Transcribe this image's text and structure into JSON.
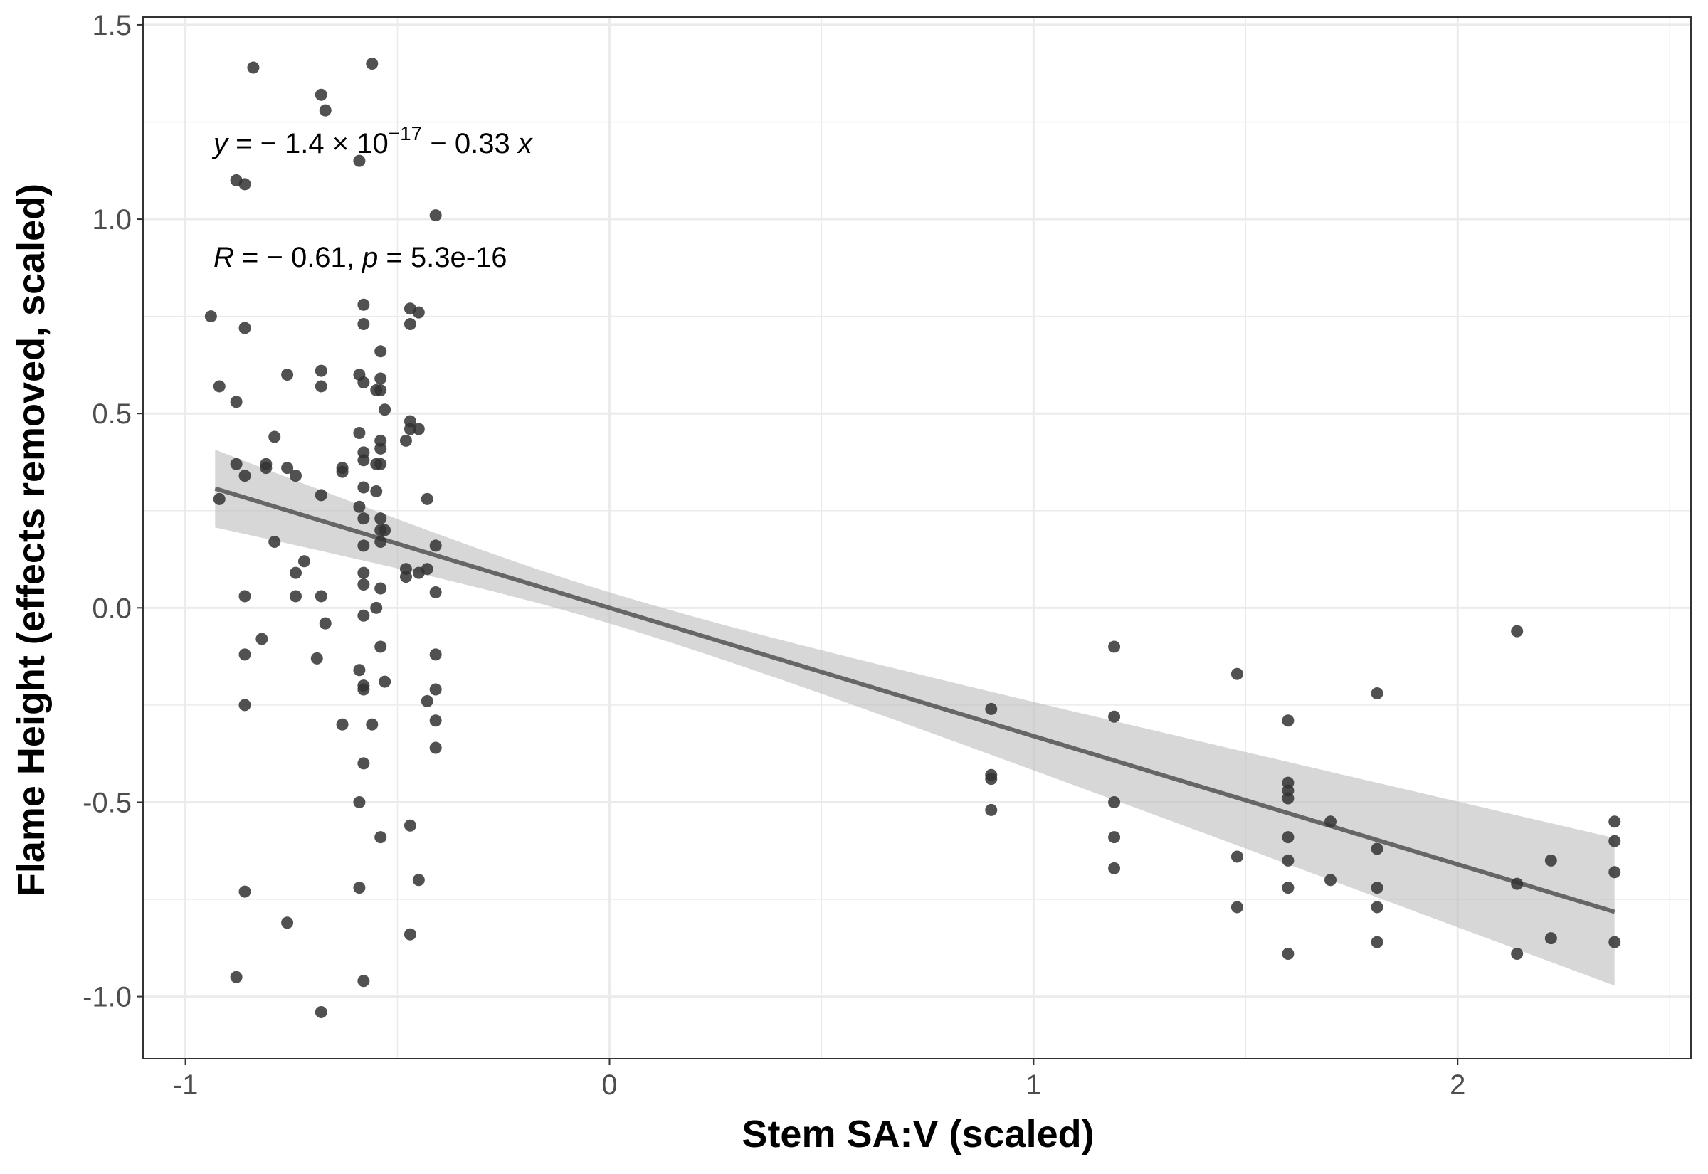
{
  "chart_data": {
    "type": "scatter",
    "xlabel": "Stem SA:V (scaled)",
    "ylabel": "Flame Height (effects removed, scaled)",
    "xlim": [
      -1.1,
      2.55
    ],
    "ylim": [
      -1.16,
      1.52
    ],
    "x_ticks": [
      -1,
      0,
      1,
      2
    ],
    "x_tick_labels": [
      "-1",
      "0",
      "1",
      "2"
    ],
    "y_ticks": [
      -1.0,
      -0.5,
      0.0,
      0.5,
      1.0,
      1.5
    ],
    "y_tick_labels": [
      "-1.0",
      "-0.5",
      "0.0",
      "0.5",
      "1.0",
      "1.5"
    ],
    "grid": true,
    "colors": {
      "points": "#333333",
      "line": "#666666",
      "band": "#bfbfbf",
      "grid": "#ebebeb",
      "panel_border": "#333333"
    },
    "annotations": {
      "equation": {
        "y": "y",
        "eq": " = − 1.4 × 10",
        "exp": "−17",
        "rest": " − 0.33 ",
        "x": "x"
      },
      "stats": {
        "R": "R",
        "r_text": " = − 0.61, ",
        "p": "p",
        "p_text": " = 5.3e-16"
      }
    },
    "fit": {
      "intercept": -1.4e-17,
      "slope": -0.33,
      "x_range": [
        -0.93,
        2.37
      ],
      "ci_lower_at_ends": [
        0.21,
        -0.98
      ],
      "ci_upper_at_ends": [
        0.41,
        -0.6
      ],
      "ci_half_width_at_mean": 0.04,
      "x_mean": 0
    },
    "points": [
      [
        -0.94,
        0.75
      ],
      [
        -0.92,
        0.57
      ],
      [
        -0.92,
        0.28
      ],
      [
        -0.88,
        0.53
      ],
      [
        -0.88,
        0.37
      ],
      [
        -0.88,
        1.1
      ],
      [
        -0.88,
        -0.95
      ],
      [
        -0.86,
        1.09
      ],
      [
        -0.86,
        0.72
      ],
      [
        -0.86,
        0.34
      ],
      [
        -0.86,
        0.03
      ],
      [
        -0.86,
        -0.12
      ],
      [
        -0.86,
        -0.25
      ],
      [
        -0.86,
        -0.73
      ],
      [
        -0.84,
        1.39
      ],
      [
        -0.82,
        -0.08
      ],
      [
        -0.81,
        0.37
      ],
      [
        -0.81,
        0.36
      ],
      [
        -0.79,
        0.44
      ],
      [
        -0.79,
        0.17
      ],
      [
        -0.76,
        0.6
      ],
      [
        -0.76,
        0.36
      ],
      [
        -0.76,
        -0.81
      ],
      [
        -0.74,
        0.34
      ],
      [
        -0.74,
        0.09
      ],
      [
        -0.74,
        0.03
      ],
      [
        -0.72,
        0.12
      ],
      [
        -0.69,
        -0.13
      ],
      [
        -0.68,
        1.32
      ],
      [
        -0.68,
        0.61
      ],
      [
        -0.68,
        0.57
      ],
      [
        -0.68,
        0.29
      ],
      [
        -0.68,
        0.03
      ],
      [
        -0.68,
        -1.04
      ],
      [
        -0.67,
        1.28
      ],
      [
        -0.67,
        -0.04
      ],
      [
        -0.63,
        0.36
      ],
      [
        -0.63,
        0.35
      ],
      [
        -0.63,
        -0.3
      ],
      [
        -0.59,
        1.15
      ],
      [
        -0.59,
        0.6
      ],
      [
        -0.59,
        0.45
      ],
      [
        -0.59,
        0.26
      ],
      [
        -0.59,
        -0.16
      ],
      [
        -0.59,
        -0.5
      ],
      [
        -0.59,
        -0.72
      ],
      [
        -0.58,
        0.78
      ],
      [
        -0.58,
        0.73
      ],
      [
        -0.58,
        0.58
      ],
      [
        -0.58,
        0.4
      ],
      [
        -0.58,
        0.38
      ],
      [
        -0.58,
        0.31
      ],
      [
        -0.58,
        0.23
      ],
      [
        -0.58,
        0.16
      ],
      [
        -0.58,
        0.09
      ],
      [
        -0.58,
        0.06
      ],
      [
        -0.58,
        -0.02
      ],
      [
        -0.58,
        -0.2
      ],
      [
        -0.58,
        -0.21
      ],
      [
        -0.58,
        -0.4
      ],
      [
        -0.58,
        -0.96
      ],
      [
        -0.56,
        1.4
      ],
      [
        -0.56,
        -0.3
      ],
      [
        -0.55,
        0.56
      ],
      [
        -0.55,
        0.37
      ],
      [
        -0.55,
        0.3
      ],
      [
        -0.55,
        0.0
      ],
      [
        -0.54,
        0.66
      ],
      [
        -0.54,
        0.59
      ],
      [
        -0.54,
        0.56
      ],
      [
        -0.54,
        0.43
      ],
      [
        -0.54,
        0.41
      ],
      [
        -0.54,
        0.37
      ],
      [
        -0.54,
        0.23
      ],
      [
        -0.54,
        0.2
      ],
      [
        -0.54,
        0.17
      ],
      [
        -0.54,
        0.05
      ],
      [
        -0.54,
        -0.1
      ],
      [
        -0.54,
        -0.59
      ],
      [
        -0.53,
        0.51
      ],
      [
        -0.53,
        0.2
      ],
      [
        -0.53,
        -0.19
      ],
      [
        -0.48,
        0.43
      ],
      [
        -0.48,
        0.1
      ],
      [
        -0.48,
        0.08
      ],
      [
        -0.47,
        0.77
      ],
      [
        -0.47,
        0.73
      ],
      [
        -0.47,
        0.48
      ],
      [
        -0.47,
        0.46
      ],
      [
        -0.47,
        -0.56
      ],
      [
        -0.47,
        -0.84
      ],
      [
        -0.45,
        0.76
      ],
      [
        -0.45,
        0.46
      ],
      [
        -0.45,
        0.09
      ],
      [
        -0.45,
        -0.7
      ],
      [
        -0.43,
        0.28
      ],
      [
        -0.43,
        0.1
      ],
      [
        -0.43,
        -0.24
      ],
      [
        -0.41,
        1.01
      ],
      [
        -0.41,
        0.16
      ],
      [
        -0.41,
        0.04
      ],
      [
        -0.41,
        -0.12
      ],
      [
        -0.41,
        -0.21
      ],
      [
        -0.41,
        -0.29
      ],
      [
        -0.41,
        -0.36
      ],
      [
        0.9,
        -0.26
      ],
      [
        0.9,
        -0.43
      ],
      [
        0.9,
        -0.44
      ],
      [
        0.9,
        -0.52
      ],
      [
        1.19,
        -0.1
      ],
      [
        1.19,
        -0.28
      ],
      [
        1.19,
        -0.5
      ],
      [
        1.19,
        -0.59
      ],
      [
        1.19,
        -0.67
      ],
      [
        1.48,
        -0.17
      ],
      [
        1.48,
        -0.64
      ],
      [
        1.48,
        -0.77
      ],
      [
        1.6,
        -0.29
      ],
      [
        1.6,
        -0.45
      ],
      [
        1.6,
        -0.47
      ],
      [
        1.6,
        -0.49
      ],
      [
        1.6,
        -0.59
      ],
      [
        1.6,
        -0.65
      ],
      [
        1.6,
        -0.72
      ],
      [
        1.6,
        -0.89
      ],
      [
        1.7,
        -0.55
      ],
      [
        1.7,
        -0.7
      ],
      [
        1.81,
        -0.22
      ],
      [
        1.81,
        -0.62
      ],
      [
        1.81,
        -0.72
      ],
      [
        1.81,
        -0.77
      ],
      [
        1.81,
        -0.86
      ],
      [
        2.14,
        -0.06
      ],
      [
        2.14,
        -0.71
      ],
      [
        2.14,
        -0.89
      ],
      [
        2.22,
        -0.65
      ],
      [
        2.22,
        -0.85
      ],
      [
        2.37,
        -0.55
      ],
      [
        2.37,
        -0.6
      ],
      [
        2.37,
        -0.68
      ],
      [
        2.37,
        -0.86
      ]
    ]
  }
}
